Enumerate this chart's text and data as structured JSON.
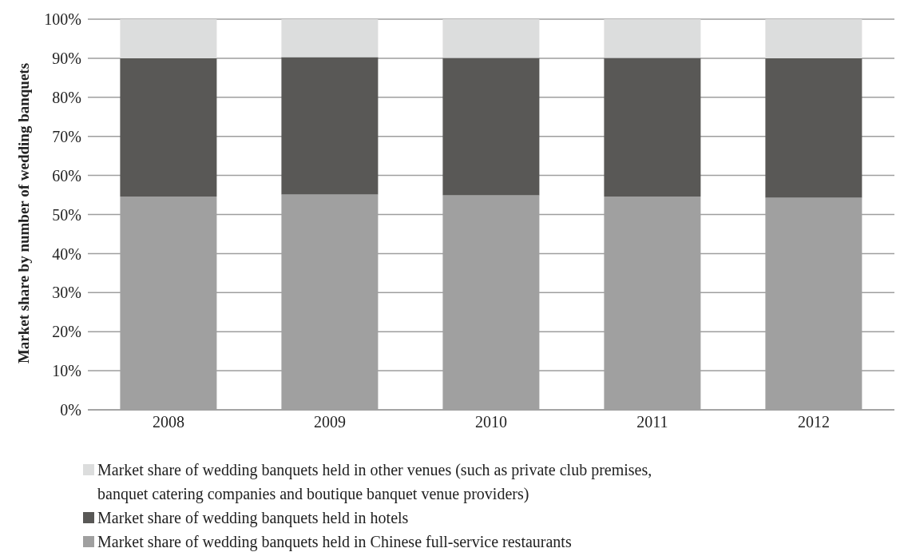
{
  "chart_data": {
    "type": "bar",
    "stacked": true,
    "ylabel": "Market share by number of wedding banquets",
    "categories": [
      "2008",
      "2009",
      "2010",
      "2011",
      "2012"
    ],
    "series": [
      {
        "name": "Market share of wedding banquets held in Chinese full-service restaurants",
        "color": "#a0a0a0",
        "values": [
          54.6,
          55.1,
          54.9,
          54.6,
          54.3
        ]
      },
      {
        "name": "Market share of wedding banquets held in hotels",
        "color": "#595856",
        "values": [
          35.4,
          35.2,
          35.2,
          35.5,
          35.7
        ]
      },
      {
        "name": "Market share of wedding banquets held in other venues (such as private club premises, banquet catering companies and boutique banquet venue providers)",
        "color": "#dcdddd",
        "values": [
          10.0,
          9.7,
          9.9,
          9.9,
          10.0
        ]
      }
    ],
    "ylim": [
      0,
      100
    ],
    "yticks": [
      {
        "value": 0,
        "label": "0%"
      },
      {
        "value": 10,
        "label": "10%"
      },
      {
        "value": 20,
        "label": "20%"
      },
      {
        "value": 30,
        "label": "30%"
      },
      {
        "value": 40,
        "label": "40%"
      },
      {
        "value": 50,
        "label": "50%"
      },
      {
        "value": 60,
        "label": "60%"
      },
      {
        "value": 70,
        "label": "70%"
      },
      {
        "value": 80,
        "label": "80%"
      },
      {
        "value": 90,
        "label": "90%"
      },
      {
        "value": 100,
        "label": "100%"
      }
    ],
    "grid": "y",
    "legend": "bottom"
  }
}
